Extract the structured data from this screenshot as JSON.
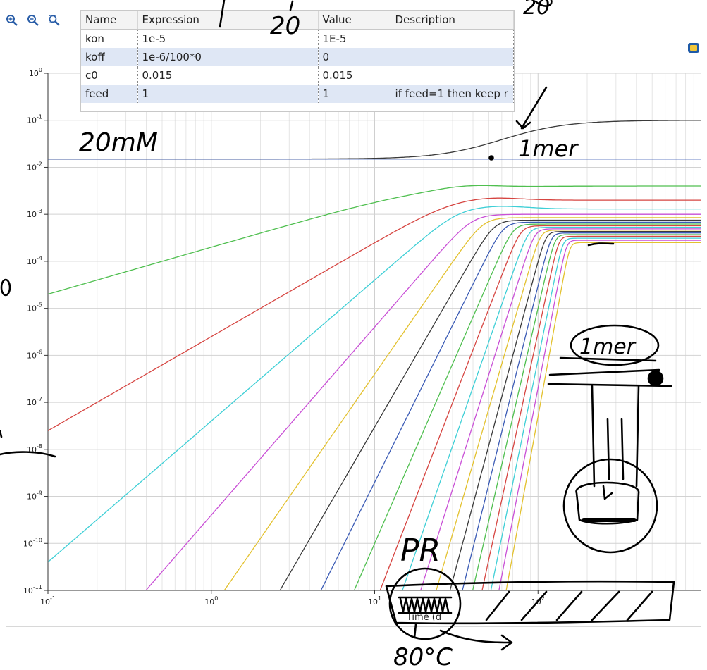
{
  "toolbar": {
    "buttons": [
      {
        "name": "zoom-in-icon"
      },
      {
        "name": "zoom-out-icon"
      },
      {
        "name": "zoom-box-icon"
      }
    ]
  },
  "parameter_table": {
    "headers": [
      "Name",
      "Expression",
      "Value",
      "Description"
    ],
    "rows": [
      {
        "name": "kon",
        "expression": "1e-5",
        "value": "1E-5",
        "description": ""
      },
      {
        "name": "koff",
        "expression": "1e-6/100*0",
        "value": "0",
        "description": ""
      },
      {
        "name": "c0",
        "expression": "0.015",
        "value": "0.015",
        "description": ""
      },
      {
        "name": "feed",
        "expression": "1",
        "value": "1",
        "description": "if feed=1 then keep r"
      }
    ]
  },
  "handwritten_notes": [
    "20",
    "20",
    "20mM",
    "1mer",
    "1mer",
    "PR",
    "80°C"
  ],
  "chart_data": {
    "type": "line",
    "xscale": "log",
    "yscale": "log",
    "xlim": [
      0.1,
      1000
    ],
    "ylim": [
      1e-11,
      1
    ],
    "xlabel": "Time (d",
    "ylabel": "",
    "x_ticks": [
      "10^-1",
      "10^0",
      "10^1",
      "10^2"
    ],
    "y_ticks": [
      "10^0",
      "10^-1",
      "10^-2",
      "10^-3",
      "10^-4",
      "10^-5",
      "10^-6",
      "10^-7",
      "10^-8",
      "10^-9",
      "10^-10",
      "10^-11"
    ],
    "grid": true,
    "series": [
      {
        "color": "#3a3a3a",
        "kind": "const",
        "start": 0.015,
        "steady": 0.1,
        "rise_x": 60
      },
      {
        "color": "#3b5bb5",
        "kind": "const",
        "start": 0.015,
        "steady": 0.015,
        "rise_x": 60
      },
      {
        "color": "#4fbf4f",
        "kind": "power",
        "order": 1,
        "steady": 0.004,
        "y_at_xmin": 2e-05
      },
      {
        "color": "#d64541",
        "kind": "power",
        "order": 2,
        "steady": 0.002,
        "y_at_xmin": 2.5e-08
      },
      {
        "color": "#3ecfd6",
        "kind": "power",
        "order": 3,
        "steady": 0.0013,
        "y_at_xmin": 4e-11
      },
      {
        "color": "#c94fd6",
        "kind": "power",
        "order": 4,
        "steady": 0.001,
        "y_at_xmin": 4e-14
      },
      {
        "color": "#e3c12e",
        "kind": "power",
        "order": 5,
        "steady": 0.00085,
        "y_at_xmin": 4e-17
      },
      {
        "color": "#3a3a3a",
        "kind": "power",
        "order": 6,
        "steady": 0.00075,
        "y_at_xmin": 3e-20
      },
      {
        "color": "#3b5bb5",
        "kind": "power",
        "order": 7,
        "steady": 0.00068,
        "y_at_xmin": 2e-23
      },
      {
        "color": "#4fbf4f",
        "kind": "power",
        "order": 8,
        "steady": 0.00062,
        "y_at_xmin": 1e-26
      },
      {
        "color": "#d64541",
        "kind": "power",
        "order": 9,
        "steady": 0.00057,
        "y_at_xmin": 5e-30
      },
      {
        "color": "#3ecfd6",
        "kind": "power",
        "order": 10,
        "steady": 0.00053,
        "y_at_xmin": 2e-33
      },
      {
        "color": "#c94fd6",
        "kind": "power",
        "order": 11,
        "steady": 0.00049,
        "y_at_xmin": 8e-37
      },
      {
        "color": "#e3c12e",
        "kind": "power",
        "order": 12,
        "steady": 0.00046,
        "y_at_xmin": 3e-40
      },
      {
        "color": "#3a3a3a",
        "kind": "power",
        "order": 13,
        "steady": 0.00043,
        "y_at_xmin": 1e-43
      },
      {
        "color": "#3b5bb5",
        "kind": "power",
        "order": 14,
        "steady": 0.0004,
        "y_at_xmin": 3e-47
      },
      {
        "color": "#4fbf4f",
        "kind": "power",
        "order": 15,
        "steady": 0.00037,
        "y_at_xmin": 1e-50
      },
      {
        "color": "#d64541",
        "kind": "power",
        "order": 16,
        "steady": 0.00034,
        "y_at_xmin": 3e-54
      },
      {
        "color": "#3ecfd6",
        "kind": "power",
        "order": 17,
        "steady": 0.00031,
        "y_at_xmin": 8e-58
      },
      {
        "color": "#c94fd6",
        "kind": "power",
        "order": 18,
        "steady": 0.00028,
        "y_at_xmin": 2e-61
      },
      {
        "color": "#e3c12e",
        "kind": "power",
        "order": 19,
        "steady": 0.00025,
        "y_at_xmin": 5e-65
      }
    ]
  }
}
